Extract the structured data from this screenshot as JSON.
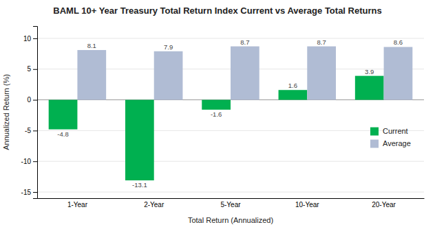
{
  "chart_data": {
    "type": "bar",
    "title": "BAML 10+ Year Treasury Total Return Index Current vs Average Total Returns",
    "xlabel": "Total Return (Annualized)",
    "ylabel": "Annualized Return (%)",
    "categories": [
      "1-Year",
      "2-Year",
      "5-Year",
      "10-Year",
      "20-Year"
    ],
    "series": [
      {
        "name": "Current",
        "color": "#00b050",
        "values": [
          -4.8,
          -13.1,
          -1.6,
          1.6,
          3.9
        ]
      },
      {
        "name": "Average",
        "color": "#b0bcd4",
        "values": [
          8.1,
          7.9,
          8.7,
          8.7,
          8.6
        ]
      }
    ],
    "ylim": [
      -16,
      12
    ],
    "yticks": [
      -15,
      -10,
      -5,
      0,
      5,
      10
    ],
    "grid": true,
    "legend": "right",
    "data_labels": true
  }
}
